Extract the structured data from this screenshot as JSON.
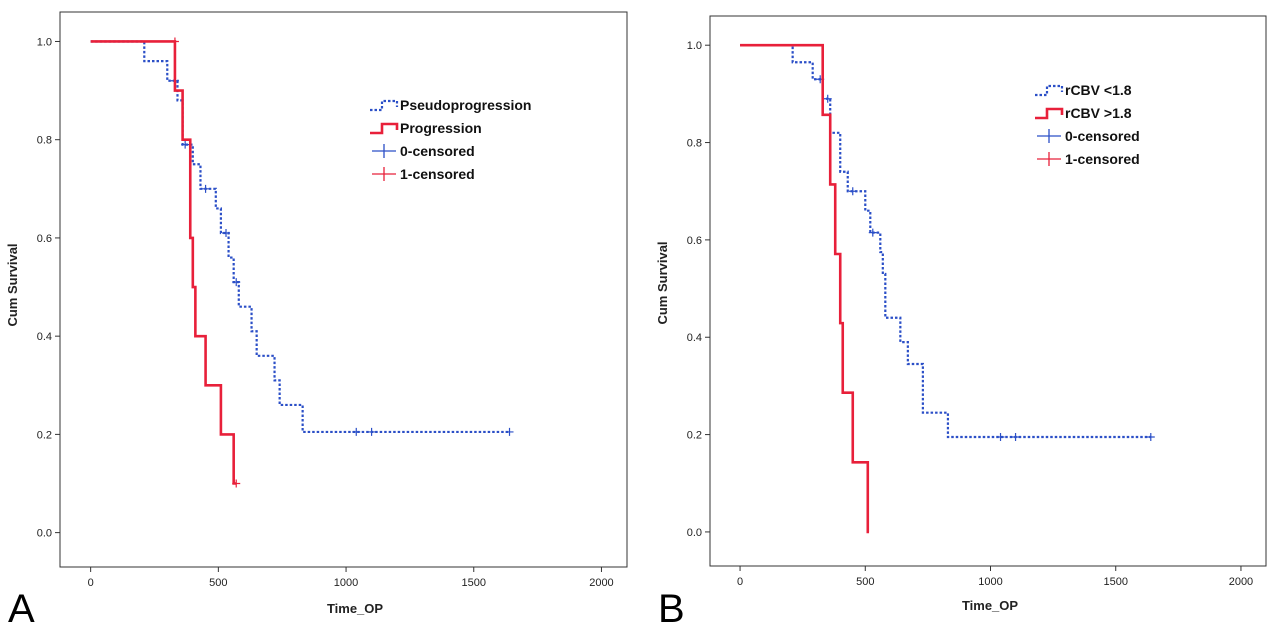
{
  "colors": {
    "blue": "#2b4fc7",
    "red": "#e8203a",
    "frame": "#333333"
  },
  "chart_data": [
    {
      "panel_label": "A",
      "type": "line",
      "step": true,
      "xlabel": "Time_OP",
      "ylabel": "Cum Survival",
      "xlim": [
        -120,
        2100
      ],
      "ylim": [
        -0.07,
        1.06
      ],
      "xticks": [
        "0",
        "500",
        "1000",
        "1500",
        "2000"
      ],
      "yticks": [
        "0.0",
        "0.2",
        "0.4",
        "0.6",
        "0.8",
        "1.0"
      ],
      "legend": {
        "position": "top-right",
        "items": [
          {
            "label": "Pseudoprogression",
            "marker": "step-line",
            "color": "#2b4fc7",
            "dash": true
          },
          {
            "label": "Progression",
            "marker": "step-line",
            "color": "#e8203a",
            "dash": false
          },
          {
            "label": "0-censored",
            "marker": "plus",
            "color": "#2b4fc7"
          },
          {
            "label": "1-censored",
            "marker": "plus",
            "color": "#e8203a"
          }
        ]
      },
      "series": [
        {
          "name": "Pseudoprogression",
          "color": "#2b4fc7",
          "dash": true,
          "x": [
            0,
            210,
            300,
            340,
            360,
            380,
            400,
            430,
            480,
            490,
            510,
            520,
            540,
            560,
            580,
            620,
            630,
            650,
            700,
            720,
            740,
            830,
            1040,
            1100,
            1640
          ],
          "y": [
            1.0,
            0.96,
            0.92,
            0.88,
            0.79,
            0.79,
            0.75,
            0.7,
            0.7,
            0.66,
            0.61,
            0.61,
            0.56,
            0.51,
            0.46,
            0.46,
            0.41,
            0.36,
            0.36,
            0.31,
            0.26,
            0.205,
            0.205,
            0.205,
            0.205
          ],
          "censored_x": [
            330,
            370,
            450,
            530,
            570,
            1040,
            1100,
            1640
          ],
          "censored_y": [
            0.92,
            0.79,
            0.7,
            0.61,
            0.51,
            0.205,
            0.205,
            0.205
          ]
        },
        {
          "name": "Progression",
          "color": "#e8203a",
          "dash": false,
          "x": [
            0,
            330,
            360,
            390,
            400,
            410,
            450,
            510,
            560,
            570
          ],
          "y": [
            1.0,
            0.9,
            0.8,
            0.6,
            0.5,
            0.4,
            0.3,
            0.2,
            0.1,
            0.1
          ],
          "censored_x": [
            330,
            570
          ],
          "censored_y": [
            1.0,
            0.1
          ]
        }
      ]
    },
    {
      "panel_label": "B",
      "type": "line",
      "step": true,
      "xlabel": "Time_OP",
      "ylabel": "Cum Survival",
      "xlim": [
        -120,
        2100
      ],
      "ylim": [
        -0.07,
        1.06
      ],
      "xticks": [
        "0",
        "500",
        "1000",
        "1500",
        "2000"
      ],
      "yticks": [
        "0.0",
        "0.2",
        "0.4",
        "0.6",
        "0.8",
        "1.0"
      ],
      "legend": {
        "position": "top-right",
        "items": [
          {
            "label": "rCBV <1.8",
            "marker": "step-line",
            "color": "#2b4fc7",
            "dash": true
          },
          {
            "label": "rCBV >1.8",
            "marker": "step-line",
            "color": "#e8203a",
            "dash": false
          },
          {
            "label": "0-censored",
            "marker": "plus",
            "color": "#2b4fc7"
          },
          {
            "label": "1-censored",
            "marker": "plus",
            "color": "#e8203a"
          }
        ]
      },
      "series": [
        {
          "name": "rCBV <1.8",
          "color": "#2b4fc7",
          "dash": true,
          "x": [
            0,
            210,
            290,
            330,
            360,
            370,
            400,
            430,
            480,
            500,
            520,
            560,
            570,
            580,
            610,
            640,
            670,
            730,
            830,
            1040,
            1100,
            1640
          ],
          "y": [
            1.0,
            0.965,
            0.93,
            0.89,
            0.82,
            0.82,
            0.74,
            0.7,
            0.7,
            0.66,
            0.615,
            0.575,
            0.53,
            0.44,
            0.44,
            0.39,
            0.345,
            0.245,
            0.195,
            0.195,
            0.195,
            0.195
          ],
          "censored_x": [
            320,
            350,
            450,
            530,
            1040,
            1100,
            1640
          ],
          "censored_y": [
            0.93,
            0.89,
            0.7,
            0.615,
            0.195,
            0.195,
            0.195
          ]
        },
        {
          "name": "rCBV >1.8",
          "color": "#e8203a",
          "dash": false,
          "x": [
            0,
            330,
            360,
            380,
            400,
            410,
            450,
            510,
            515
          ],
          "y": [
            1.0,
            0.857,
            0.714,
            0.571,
            0.429,
            0.286,
            0.143,
            0.0,
            0.0
          ],
          "censored_x": [],
          "censored_y": []
        }
      ]
    }
  ]
}
